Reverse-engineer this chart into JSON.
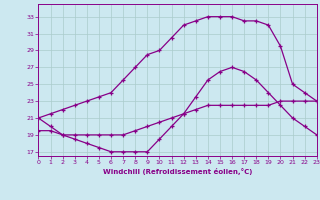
{
  "xlabel": "Windchill (Refroidissement éolien,°C)",
  "bg_color": "#cce8f0",
  "grid_color": "#aacccc",
  "line_color": "#880088",
  "curve1_x": [
    0,
    1,
    2,
    3,
    4,
    5,
    6,
    7,
    8,
    9,
    10,
    11,
    12,
    13,
    14,
    15,
    16,
    17,
    18,
    19,
    20,
    21,
    22,
    23
  ],
  "curve1_y": [
    21.0,
    21.5,
    22.0,
    22.5,
    23.0,
    23.5,
    24.0,
    25.5,
    27.0,
    28.5,
    29.0,
    30.5,
    32.0,
    32.5,
    33.0,
    33.0,
    33.0,
    32.5,
    32.5,
    32.0,
    29.5,
    25.0,
    24.0,
    23.0
  ],
  "curve2_x": [
    0,
    1,
    2,
    3,
    4,
    5,
    6,
    7,
    8,
    9,
    10,
    11,
    12,
    13,
    14,
    15,
    16,
    17,
    18,
    19,
    20,
    21,
    22,
    23
  ],
  "curve2_y": [
    21.0,
    20.0,
    19.0,
    18.5,
    18.0,
    17.5,
    17.0,
    17.0,
    17.0,
    17.0,
    18.5,
    20.0,
    21.5,
    23.5,
    25.5,
    26.5,
    27.0,
    26.5,
    25.5,
    24.0,
    22.5,
    21.0,
    20.0,
    19.0
  ],
  "curve3_x": [
    0,
    1,
    2,
    3,
    4,
    5,
    6,
    7,
    8,
    9,
    10,
    11,
    12,
    13,
    14,
    15,
    16,
    17,
    18,
    19,
    20,
    21,
    22,
    23
  ],
  "curve3_y": [
    19.5,
    19.5,
    19.0,
    19.0,
    19.0,
    19.0,
    19.0,
    19.0,
    19.5,
    20.0,
    20.5,
    21.0,
    21.5,
    22.0,
    22.5,
    22.5,
    22.5,
    22.5,
    22.5,
    22.5,
    23.0,
    23.0,
    23.0,
    23.0
  ],
  "ylim": [
    16.5,
    34.5
  ],
  "xlim": [
    0,
    23
  ],
  "yticks": [
    17,
    19,
    21,
    23,
    25,
    27,
    29,
    31,
    33
  ],
  "xticks": [
    0,
    1,
    2,
    3,
    4,
    5,
    6,
    7,
    8,
    9,
    10,
    11,
    12,
    13,
    14,
    15,
    16,
    17,
    18,
    19,
    20,
    21,
    22,
    23
  ]
}
